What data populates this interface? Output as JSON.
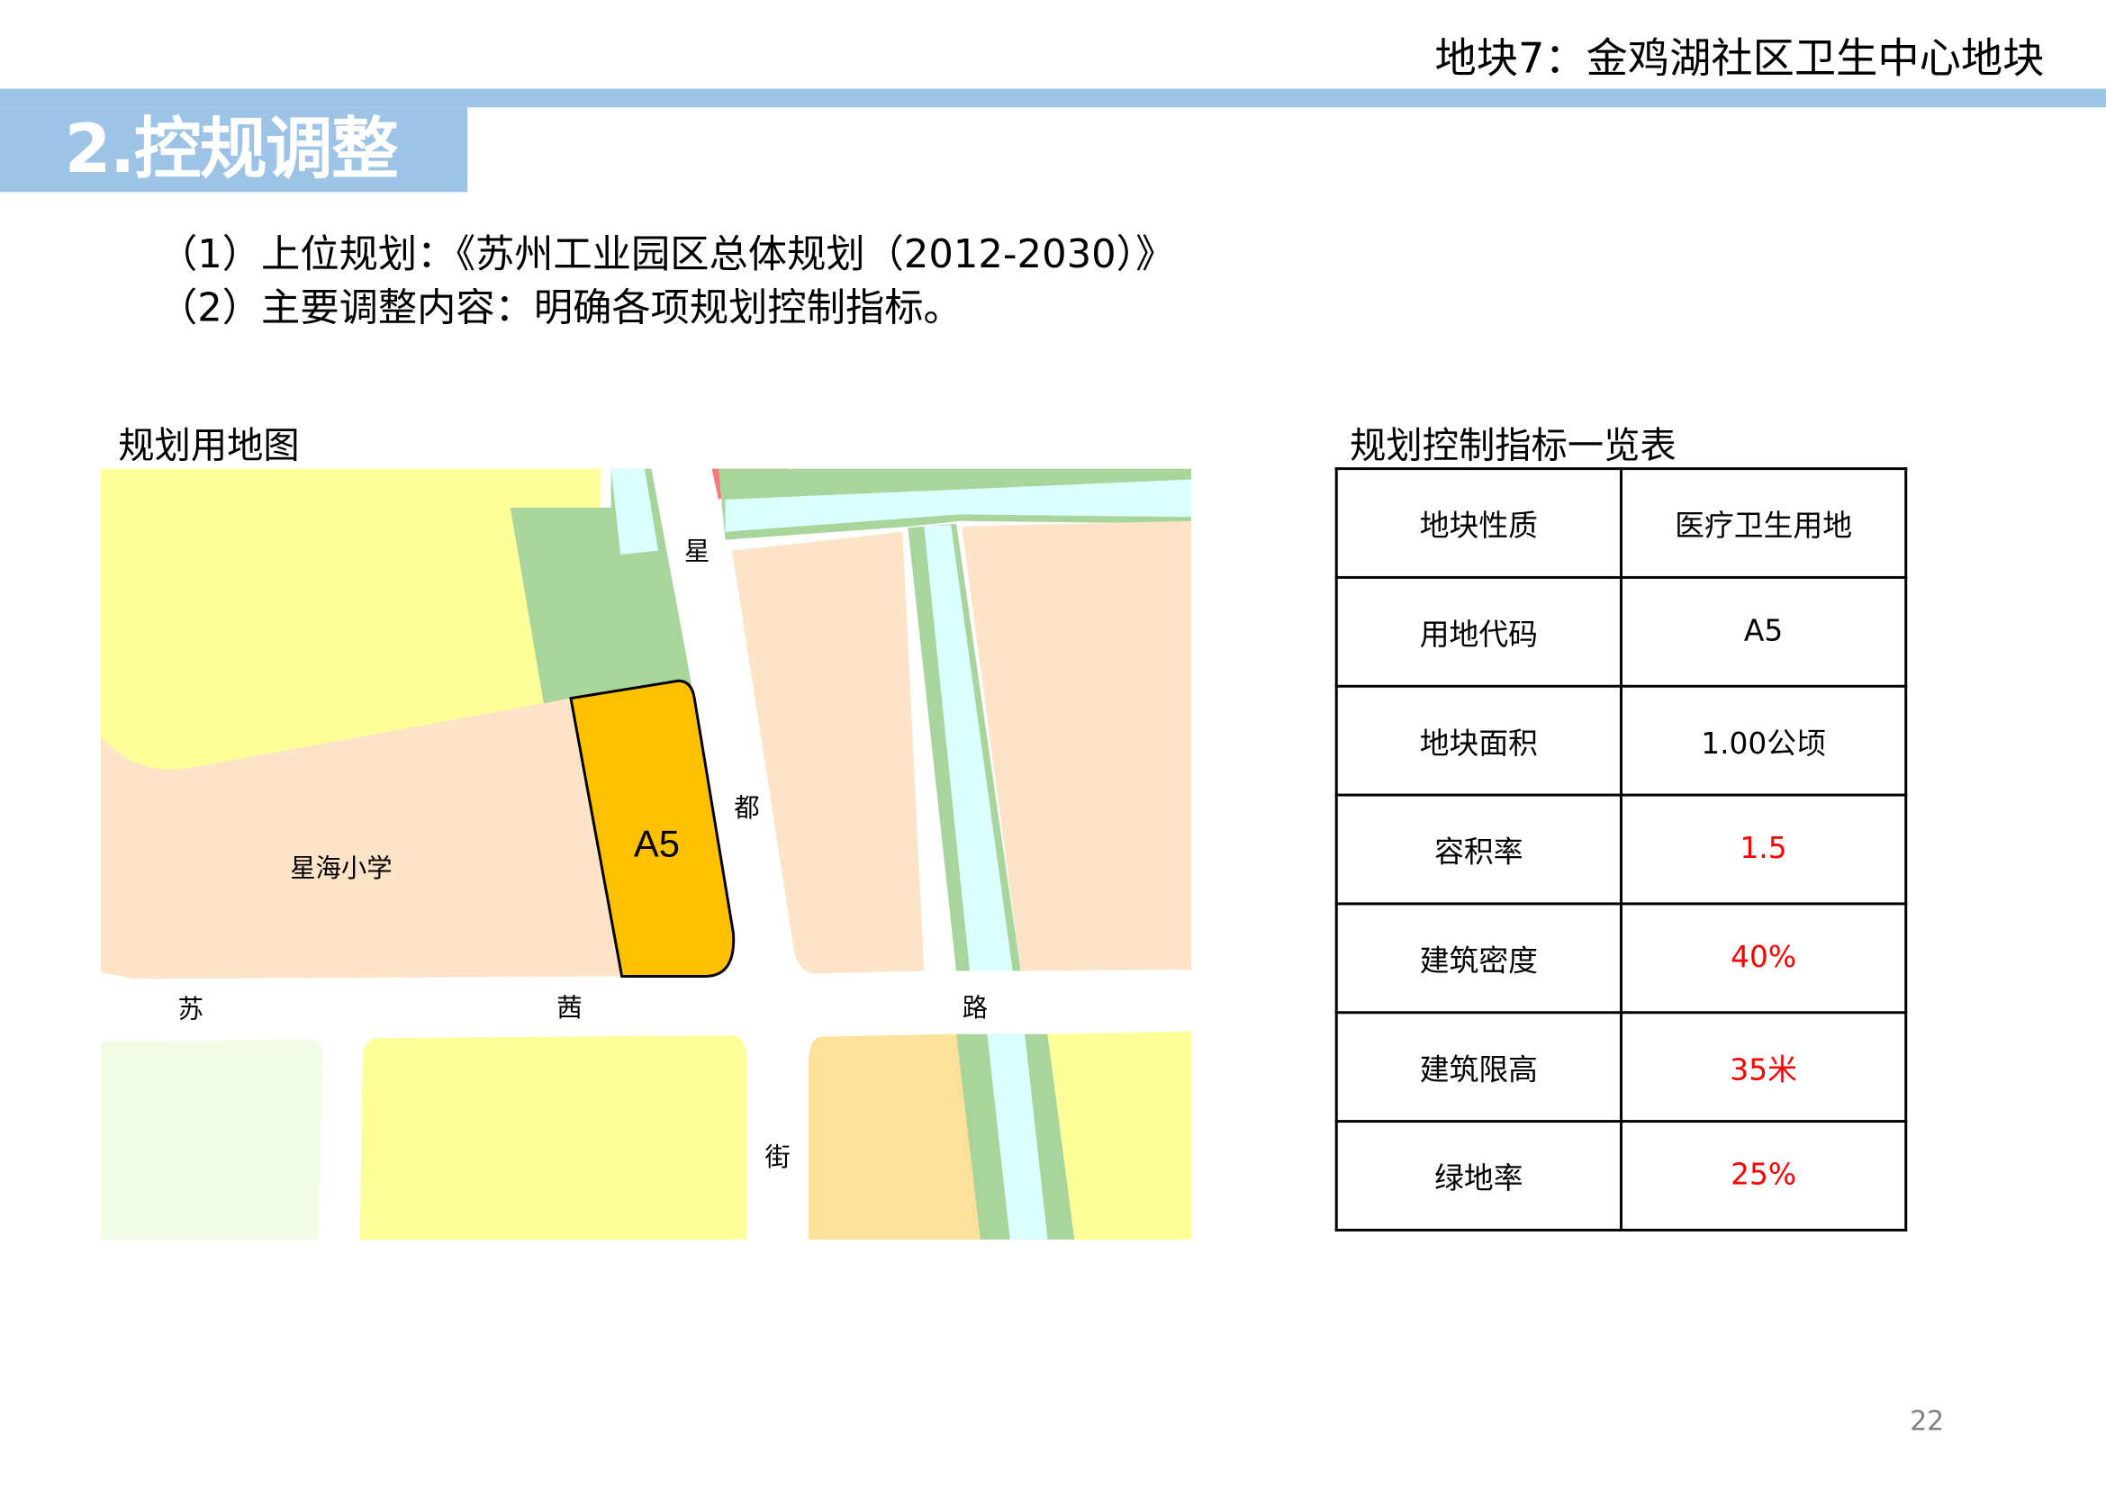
{
  "header": {
    "block_title": "地块7：金鸡湖社区卫生中心地块",
    "section_title": "2.控规调整"
  },
  "intro": {
    "line1": "（1）上位规划：《苏州工业园区总体规划（2012-2030）》",
    "line2": "（2）主要调整内容：明确各项规划控制指标。"
  },
  "map": {
    "caption": "规划用地图",
    "parcel_label": "A5",
    "school_label": "星海小学",
    "road_vertical": [
      "星",
      "都",
      "街"
    ],
    "road_horizontal": [
      "苏",
      "茜",
      "路"
    ],
    "colors": {
      "residential": "#fde4c9",
      "education": "#feff99",
      "green": "#a8d59b",
      "water": "#dcffff",
      "target": "#ffc000",
      "commercial": "#f8797a",
      "market": "#fde09a",
      "other": "#f2fde6"
    }
  },
  "table": {
    "caption": "规划控制指标一览表",
    "accent_color": "#ff0000",
    "rows": [
      {
        "label": "地块性质",
        "value": "医疗卫生用地",
        "highlight": false
      },
      {
        "label": "用地代码",
        "value": "A5",
        "highlight": false
      },
      {
        "label": "地块面积",
        "value": "1.00公顷",
        "highlight": false
      },
      {
        "label": "容积率",
        "value": "1.5",
        "highlight": true
      },
      {
        "label": "建筑密度",
        "value": "40%",
        "highlight": true
      },
      {
        "label": "建筑限高",
        "value": "35米",
        "highlight": true
      },
      {
        "label": "绿地率",
        "value": "25%",
        "highlight": true
      }
    ]
  },
  "page_number": "22"
}
